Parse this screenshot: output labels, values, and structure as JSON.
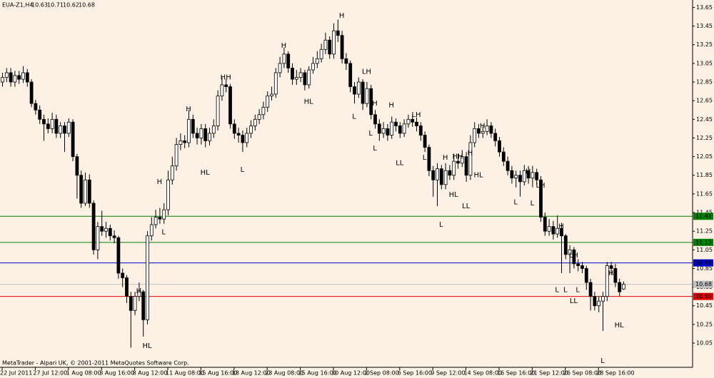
{
  "chart_data": {
    "type": "candlestick",
    "title": "EUA-Z1,H4",
    "background": "#fcf1e4",
    "up_color": "#ffffff",
    "down_color": "#000000",
    "ylim": [
      9.79,
      13.73
    ],
    "yticks": [
      13.65,
      13.45,
      13.25,
      13.05,
      12.85,
      12.65,
      12.45,
      12.25,
      12.05,
      11.85,
      11.65,
      11.45,
      11.25,
      11.05,
      10.85,
      10.65,
      10.45,
      10.25,
      10.05
    ],
    "xticks": [
      {
        "value": 0,
        "label": "22 Jul 2011"
      },
      {
        "value": 8,
        "label": "27 Jul 12:00"
      },
      {
        "value": 16,
        "label": "1 Aug 08:00"
      },
      {
        "value": 24,
        "label": "3 Aug 16:00"
      },
      {
        "value": 32,
        "label": "8 Aug 12:00"
      },
      {
        "value": 40,
        "label": "11 Aug 08:00"
      },
      {
        "value": 48,
        "label": "15 Aug 16:00"
      },
      {
        "value": 56,
        "label": "18 Aug 12:00"
      },
      {
        "value": 64,
        "label": "23 Aug 08:00"
      },
      {
        "value": 72,
        "label": "25 Aug 16:00"
      },
      {
        "value": 80,
        "label": "30 Aug 12:00"
      },
      {
        "value": 88,
        "label": "2 Sep 08:00"
      },
      {
        "value": 96,
        "label": "6 Sep 16:00"
      },
      {
        "value": 104,
        "label": "9 Sep 12:00"
      },
      {
        "value": 112,
        "label": "14 Sep 08:00"
      },
      {
        "value": 120,
        "label": "16 Sep 16:00"
      },
      {
        "value": 128,
        "label": "21 Sep 12:00"
      },
      {
        "value": 136,
        "label": "26 Sep 08:00"
      },
      {
        "value": 144,
        "label": "28 Sep 16:00"
      }
    ],
    "open": [
      12.85,
      12.9,
      12.95,
      12.85,
      12.92,
      12.88,
      12.95,
      12.85,
      12.62,
      12.55,
      12.45,
      12.4,
      12.35,
      12.45,
      12.3,
      12.38,
      12.3,
      12.42,
      12.05,
      11.85,
      11.55,
      11.8,
      11.55,
      11.05,
      11.3,
      11.25,
      11.28,
      11.2,
      11.18,
      10.8,
      10.75,
      10.55,
      10.4,
      10.55,
      10.6,
      10.3,
      11.2,
      11.32,
      11.4,
      11.38,
      11.48,
      11.8,
      11.95,
      12.18,
      12.22,
      12.2,
      12.45,
      12.3,
      12.25,
      12.35,
      12.22,
      12.3,
      12.38,
      12.7,
      12.82,
      12.8,
      12.4,
      12.3,
      12.28,
      12.2,
      12.3,
      12.38,
      12.45,
      12.5,
      12.58,
      12.7,
      12.72,
      12.95,
      13.05,
      13.15,
      13.0,
      12.88,
      12.9,
      12.95,
      12.82,
      12.98,
      13.05,
      13.1,
      13.2,
      13.3,
      13.15,
      13.4,
      13.35,
      13.1,
      13.05,
      12.8,
      12.72,
      12.85,
      12.62,
      12.78,
      12.5,
      12.4,
      12.3,
      12.35,
      12.28,
      12.42,
      12.38,
      12.3,
      12.4,
      12.45,
      12.42,
      12.38,
      12.28,
      12.15,
      11.9,
      11.8,
      11.92,
      11.75,
      11.9,
      11.85,
      12.0,
      11.98,
      12.05,
      11.85,
      12.2,
      12.35,
      12.3,
      12.32,
      12.38,
      12.3,
      12.22,
      12.1,
      12.0,
      11.9,
      11.82,
      11.85,
      11.78,
      11.9,
      11.82,
      11.88,
      11.8,
      11.4,
      11.25,
      11.3,
      11.22,
      11.28,
      11.2,
      11.0,
      11.05,
      10.9,
      10.88,
      10.85,
      10.7,
      10.55,
      10.45,
      10.5,
      10.55,
      10.88,
      10.85,
      10.7,
      10.63
    ],
    "high": [
      12.95,
      13.0,
      13.0,
      12.97,
      12.97,
      13.02,
      12.99,
      12.88,
      12.66,
      12.6,
      12.5,
      12.46,
      12.52,
      12.5,
      12.42,
      12.42,
      12.46,
      12.45,
      12.08,
      11.9,
      11.88,
      11.86,
      11.58,
      11.35,
      11.47,
      11.35,
      11.32,
      11.26,
      11.2,
      10.85,
      10.78,
      10.6,
      10.6,
      10.7,
      10.62,
      11.25,
      11.4,
      11.48,
      11.5,
      11.55,
      11.9,
      12.05,
      12.25,
      12.3,
      12.28,
      12.55,
      12.5,
      12.36,
      12.4,
      12.4,
      12.36,
      12.45,
      12.76,
      12.9,
      12.88,
      12.83,
      12.45,
      12.36,
      12.33,
      12.36,
      12.44,
      12.5,
      12.56,
      12.64,
      12.75,
      12.8,
      13.0,
      13.12,
      13.22,
      13.18,
      13.05,
      12.98,
      13.0,
      12.98,
      13.02,
      13.12,
      13.18,
      13.26,
      13.38,
      13.34,
      13.48,
      13.52,
      13.4,
      13.16,
      13.08,
      12.85,
      12.9,
      12.88,
      12.85,
      12.82,
      12.55,
      12.45,
      12.42,
      12.4,
      12.48,
      12.46,
      12.42,
      12.45,
      12.5,
      12.5,
      12.47,
      12.42,
      12.32,
      12.18,
      11.95,
      11.98,
      11.96,
      11.98,
      11.96,
      12.08,
      12.08,
      12.12,
      12.1,
      12.28,
      12.42,
      12.4,
      12.38,
      12.45,
      12.42,
      12.35,
      12.26,
      12.15,
      12.05,
      11.95,
      11.9,
      11.9,
      11.96,
      11.95,
      11.95,
      11.92,
      11.84,
      11.45,
      11.38,
      11.36,
      11.42,
      11.34,
      11.22,
      11.1,
      11.08,
      10.95,
      10.92,
      10.88,
      10.74,
      10.6,
      10.55,
      10.6,
      10.92,
      10.92,
      10.9,
      10.74,
      10.71
    ],
    "low": [
      12.8,
      12.85,
      12.8,
      12.8,
      12.83,
      12.84,
      12.8,
      12.58,
      12.5,
      12.4,
      12.22,
      12.3,
      12.3,
      12.25,
      12.25,
      12.1,
      12.26,
      12.0,
      11.6,
      11.5,
      11.52,
      11.5,
      11.0,
      10.95,
      11.2,
      11.18,
      11.15,
      11.12,
      10.74,
      10.65,
      10.48,
      10.0,
      10.35,
      10.5,
      10.12,
      10.25,
      11.15,
      11.28,
      11.33,
      11.33,
      11.42,
      11.75,
      11.9,
      12.12,
      12.14,
      12.15,
      12.25,
      12.18,
      12.18,
      12.15,
      12.17,
      12.25,
      12.33,
      12.65,
      12.74,
      12.35,
      12.24,
      12.2,
      12.1,
      12.15,
      12.25,
      12.33,
      12.4,
      12.45,
      12.53,
      12.65,
      12.68,
      12.9,
      13.0,
      12.95,
      12.82,
      12.82,
      12.85,
      12.76,
      12.78,
      12.94,
      13.0,
      13.06,
      13.15,
      13.1,
      13.1,
      13.28,
      13.05,
      12.98,
      12.74,
      12.62,
      12.68,
      12.55,
      12.58,
      12.45,
      12.35,
      12.22,
      12.25,
      12.22,
      12.24,
      12.32,
      12.25,
      12.26,
      12.36,
      12.37,
      12.32,
      12.22,
      12.1,
      11.84,
      11.62,
      11.52,
      11.7,
      11.7,
      11.8,
      11.8,
      11.92,
      11.94,
      11.78,
      11.8,
      12.15,
      12.25,
      12.25,
      12.28,
      12.25,
      12.16,
      12.05,
      11.95,
      11.85,
      11.76,
      11.72,
      11.62,
      11.74,
      11.76,
      11.72,
      11.75,
      11.35,
      11.2,
      11.2,
      11.16,
      11.18,
      10.8,
      10.95,
      10.8,
      10.85,
      10.82,
      10.8,
      10.62,
      10.4,
      10.4,
      10.38,
      10.18,
      10.5,
      10.78,
      10.65,
      10.55,
      10.62
    ],
    "close": [
      12.9,
      12.95,
      12.85,
      12.92,
      12.88,
      12.95,
      12.85,
      12.62,
      12.55,
      12.45,
      12.4,
      12.35,
      12.45,
      12.3,
      12.38,
      12.3,
      12.42,
      12.05,
      11.85,
      11.55,
      11.8,
      11.55,
      11.05,
      11.3,
      11.25,
      11.28,
      11.2,
      11.18,
      10.8,
      10.75,
      10.55,
      10.4,
      10.55,
      10.6,
      10.3,
      11.2,
      11.32,
      11.4,
      11.38,
      11.48,
      11.8,
      11.95,
      12.18,
      12.22,
      12.2,
      12.45,
      12.3,
      12.25,
      12.35,
      12.22,
      12.3,
      12.38,
      12.7,
      12.82,
      12.8,
      12.4,
      12.3,
      12.28,
      12.2,
      12.3,
      12.38,
      12.45,
      12.5,
      12.58,
      12.7,
      12.72,
      12.95,
      13.05,
      13.15,
      13.0,
      12.88,
      12.9,
      12.95,
      12.82,
      12.98,
      13.05,
      13.1,
      13.2,
      13.3,
      13.15,
      13.4,
      13.35,
      13.1,
      13.05,
      12.8,
      12.72,
      12.85,
      12.62,
      12.78,
      12.5,
      12.4,
      12.3,
      12.35,
      12.28,
      12.42,
      12.38,
      12.3,
      12.4,
      12.45,
      12.42,
      12.38,
      12.28,
      12.15,
      11.9,
      11.8,
      11.92,
      11.75,
      11.9,
      11.85,
      12.0,
      11.98,
      12.05,
      11.85,
      12.2,
      12.35,
      12.3,
      12.32,
      12.38,
      12.3,
      12.22,
      12.1,
      12.0,
      11.9,
      11.82,
      11.85,
      11.78,
      11.9,
      11.82,
      11.88,
      11.8,
      11.4,
      11.25,
      11.3,
      11.22,
      11.28,
      11.2,
      11.0,
      11.05,
      10.9,
      10.88,
      10.85,
      10.7,
      10.55,
      10.45,
      10.5,
      10.55,
      10.88,
      10.85,
      10.7,
      10.6,
      10.68
    ],
    "levels": [
      {
        "value": 11.41,
        "color": "#008000"
      },
      {
        "value": 11.13,
        "color": "#008000"
      },
      {
        "value": 10.91,
        "color": "#0000cc"
      },
      {
        "value": 10.68,
        "color": "#c0c0c0"
      },
      {
        "value": 10.55,
        "color": "#e00000"
      }
    ],
    "annotations": [
      {
        "text": "H",
        "x": 82,
        "y": 13.56
      },
      {
        "text": "LH",
        "x": 88,
        "y": 12.96
      },
      {
        "text": "L",
        "x": 85,
        "y": 12.48
      },
      {
        "text": "L",
        "x": 89,
        "y": 12.3
      },
      {
        "text": "H",
        "x": 90,
        "y": 12.62
      },
      {
        "text": "H",
        "x": 94,
        "y": 12.6
      },
      {
        "text": "LH",
        "x": 100,
        "y": 12.5
      },
      {
        "text": "L",
        "x": 90,
        "y": 12.14
      },
      {
        "text": "LL",
        "x": 96,
        "y": 11.98
      },
      {
        "text": "L",
        "x": 102,
        "y": 12.04
      },
      {
        "text": "H",
        "x": 107,
        "y": 12.04
      },
      {
        "text": "HH",
        "x": 110,
        "y": 12.05
      },
      {
        "text": "H",
        "x": 113,
        "y": 12.09
      },
      {
        "text": "H",
        "x": 116,
        "y": 12.38
      },
      {
        "text": "HL",
        "x": 109,
        "y": 11.64
      },
      {
        "text": "LL",
        "x": 112,
        "y": 11.52
      },
      {
        "text": "HL",
        "x": 115,
        "y": 11.85
      },
      {
        "text": "L",
        "x": 106,
        "y": 11.32
      },
      {
        "text": "H",
        "x": 127,
        "y": 11.89
      },
      {
        "text": "LH",
        "x": 130,
        "y": 11.74
      },
      {
        "text": "L",
        "x": 124,
        "y": 11.56
      },
      {
        "text": "L",
        "x": 128,
        "y": 11.55
      },
      {
        "text": "H",
        "x": 135,
        "y": 11.3
      },
      {
        "text": "LH",
        "x": 138,
        "y": 10.99
      },
      {
        "text": "L",
        "x": 134,
        "y": 10.62
      },
      {
        "text": "L",
        "x": 136,
        "y": 10.62
      },
      {
        "text": "L",
        "x": 139,
        "y": 10.62
      },
      {
        "text": "LL",
        "x": 138,
        "y": 10.5
      },
      {
        "text": "L",
        "x": 145,
        "y": 9.86
      },
      {
        "text": "H",
        "x": 147,
        "y": 10.8
      },
      {
        "text": "HL",
        "x": 149,
        "y": 10.24
      },
      {
        "text": "H",
        "x": 38,
        "y": 11.78
      },
      {
        "text": "L",
        "x": 39,
        "y": 11.24
      },
      {
        "text": "H",
        "x": 33,
        "y": 10.61
      },
      {
        "text": "HL",
        "x": 35,
        "y": 10.02
      },
      {
        "text": "H",
        "x": 45,
        "y": 12.56
      },
      {
        "text": "HL",
        "x": 49,
        "y": 11.88
      },
      {
        "text": "HH",
        "x": 54,
        "y": 12.9
      },
      {
        "text": "L",
        "x": 58,
        "y": 11.91
      },
      {
        "text": "H",
        "x": 68,
        "y": 13.24
      },
      {
        "text": "HL",
        "x": 74,
        "y": 12.64
      }
    ]
  },
  "footer": "MetaTrader - Alpari UK, © 2001-2011 MetaQuotes Software Corp."
}
